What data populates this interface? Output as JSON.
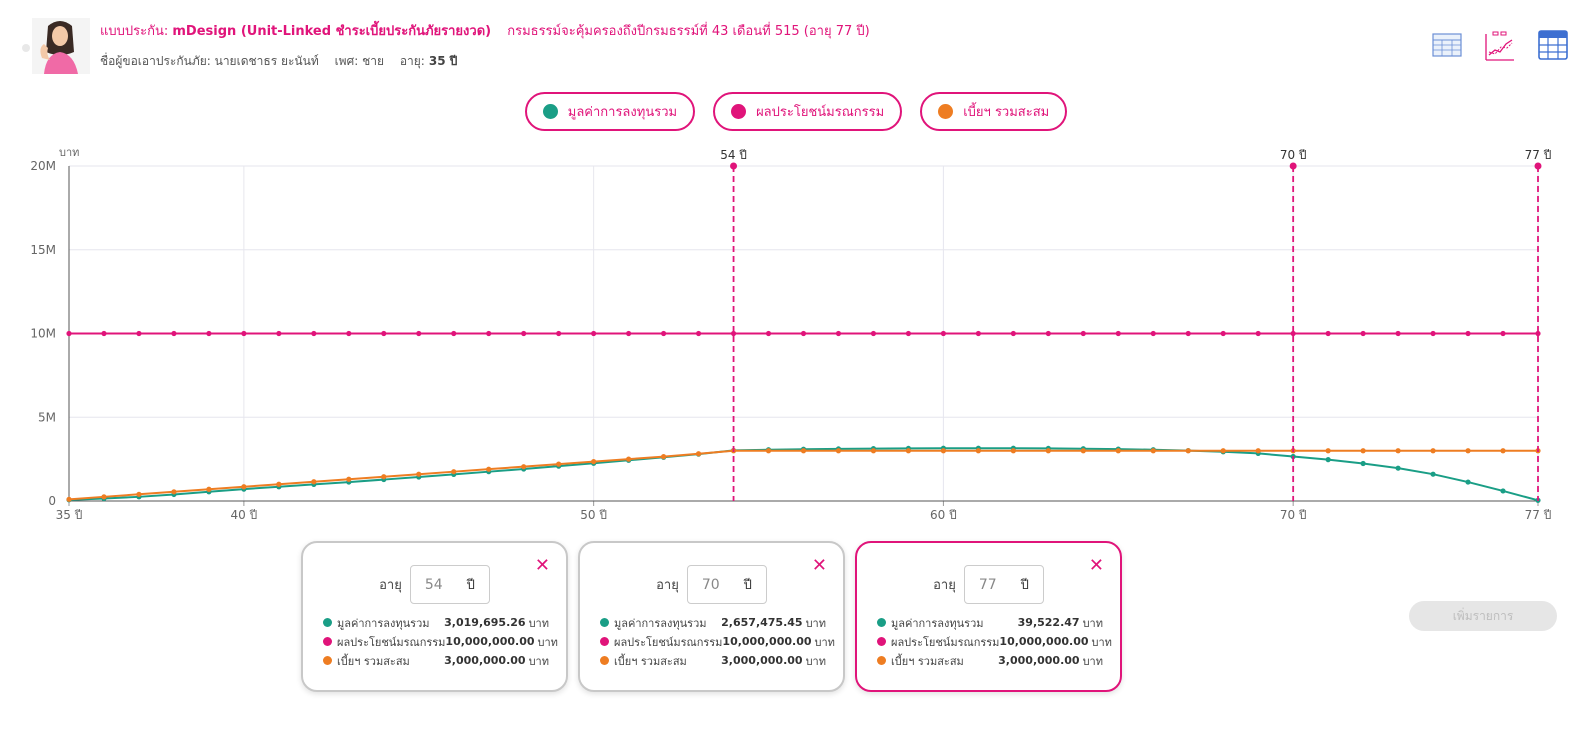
{
  "header": {
    "plan_label": "แบบประกัน:",
    "plan_name": "mDesign (Unit-Linked ชำระเบี้ยประกันภัยรายงวด)",
    "coverage_text": "กรมธรรม์จะคุ้มครองถึงปีกรมธรรม์ที่ 43 เดือนที่ 515 (อายุ 77 ปี)",
    "insured_name": "ชื่อผู้ขอเอาประกันภัย: นายเดชาธร ยะนันท์",
    "gender": "เพศ: ชาย",
    "age_label": "อายุ:",
    "age_value": "35 ปี"
  },
  "view_icons": [
    "table-view-icon",
    "chart-view-icon",
    "calculator-view-icon"
  ],
  "legend": [
    {
      "label": "มูลค่าการลงทุนรวม",
      "color": "#1a9e86"
    },
    {
      "label": "ผลประโยชน์มรณกรรม",
      "color": "#e0147a"
    },
    {
      "label": "เบี้ยฯ รวมสะสม",
      "color": "#ee7d22"
    }
  ],
  "chart_data": {
    "type": "line",
    "ylabel": "บาท",
    "xlim": [
      35,
      77
    ],
    "ylim": [
      0,
      20000000
    ],
    "x_ticks": [
      {
        "v": 35,
        "label": "35 ปี"
      },
      {
        "v": 40,
        "label": "40 ปี"
      },
      {
        "v": 50,
        "label": "50 ปี"
      },
      {
        "v": 60,
        "label": "60 ปี"
      },
      {
        "v": 70,
        "label": "70 ปี"
      },
      {
        "v": 77,
        "label": "77 ปี"
      }
    ],
    "y_ticks": [
      {
        "v": 0,
        "label": "0"
      },
      {
        "v": 5000000,
        "label": "5M"
      },
      {
        "v": 10000000,
        "label": "10M"
      },
      {
        "v": 15000000,
        "label": "15M"
      },
      {
        "v": 20000000,
        "label": "20M"
      }
    ],
    "markers": [
      {
        "age": 54,
        "label": "54 ปี"
      },
      {
        "age": 70,
        "label": "70 ปี"
      },
      {
        "age": 77,
        "label": "77 ปี"
      }
    ],
    "x": [
      35,
      36,
      37,
      38,
      39,
      40,
      41,
      42,
      43,
      44,
      45,
      46,
      47,
      48,
      49,
      50,
      51,
      52,
      53,
      54,
      55,
      56,
      57,
      58,
      59,
      60,
      61,
      62,
      63,
      64,
      65,
      66,
      67,
      68,
      69,
      70,
      71,
      72,
      73,
      74,
      75,
      76,
      77
    ],
    "series": [
      {
        "name": "มูลค่าการลงทุนรวม",
        "color": "#1a9e86",
        "values": [
          70000,
          150000,
          250000,
          390000,
          550000,
          710000,
          850000,
          990000,
          1130000,
          1280000,
          1430000,
          1590000,
          1750000,
          1910000,
          2080000,
          2250000,
          2430000,
          2610000,
          2800000,
          3019695,
          3060000,
          3090000,
          3110000,
          3130000,
          3140000,
          3150000,
          3150000,
          3150000,
          3140000,
          3120000,
          3100000,
          3060000,
          3010000,
          2940000,
          2840000,
          2657475,
          2470000,
          2240000,
          1960000,
          1600000,
          1130000,
          600000,
          39522
        ]
      },
      {
        "name": "ผลประโยชน์มรณกรรม",
        "color": "#e0147a",
        "values": [
          10000000,
          10000000,
          10000000,
          10000000,
          10000000,
          10000000,
          10000000,
          10000000,
          10000000,
          10000000,
          10000000,
          10000000,
          10000000,
          10000000,
          10000000,
          10000000,
          10000000,
          10000000,
          10000000,
          10000000,
          10000000,
          10000000,
          10000000,
          10000000,
          10000000,
          10000000,
          10000000,
          10000000,
          10000000,
          10000000,
          10000000,
          10000000,
          10000000,
          10000000,
          10000000,
          10000000,
          10000000,
          10000000,
          10000000,
          10000000,
          10000000,
          10000000,
          10000000
        ]
      },
      {
        "name": "เบี้ยฯ รวมสะสม",
        "color": "#ee7d22",
        "values": [
          100000,
          250000,
          400000,
          550000,
          700000,
          850000,
          1000000,
          1150000,
          1300000,
          1450000,
          1600000,
          1750000,
          1900000,
          2050000,
          2200000,
          2350000,
          2500000,
          2650000,
          2820000,
          3000000,
          3000000,
          3000000,
          3000000,
          3000000,
          3000000,
          3000000,
          3000000,
          3000000,
          3000000,
          3000000,
          3000000,
          3000000,
          3000000,
          3000000,
          3000000,
          3000000,
          3000000,
          3000000,
          3000000,
          3000000,
          3000000,
          3000000,
          3000000
        ]
      }
    ]
  },
  "cards": [
    {
      "age_label": "อายุ",
      "age": "54",
      "unit": "ปี",
      "active": false,
      "rows": [
        {
          "label": "มูลค่าการลงทุนรวม",
          "value": "3,019,695.26",
          "currency": "บาท",
          "color": "#1a9e86"
        },
        {
          "label": "ผลประโยชน์มรณกรรม",
          "value": "10,000,000.00",
          "currency": "บาท",
          "color": "#e0147a"
        },
        {
          "label": "เบี้ยฯ รวมสะสม",
          "value": "3,000,000.00",
          "currency": "บาท",
          "color": "#ee7d22"
        }
      ]
    },
    {
      "age_label": "อายุ",
      "age": "70",
      "unit": "ปี",
      "active": false,
      "rows": [
        {
          "label": "มูลค่าการลงทุนรวม",
          "value": "2,657,475.45",
          "currency": "บาท",
          "color": "#1a9e86"
        },
        {
          "label": "ผลประโยชน์มรณกรรม",
          "value": "10,000,000.00",
          "currency": "บาท",
          "color": "#e0147a"
        },
        {
          "label": "เบี้ยฯ รวมสะสม",
          "value": "3,000,000.00",
          "currency": "บาท",
          "color": "#ee7d22"
        }
      ]
    },
    {
      "age_label": "อายุ",
      "age": "77",
      "unit": "ปี",
      "active": true,
      "rows": [
        {
          "label": "มูลค่าการลงทุนรวม",
          "value": "39,522.47",
          "currency": "บาท",
          "color": "#1a9e86"
        },
        {
          "label": "ผลประโยชน์มรณกรรม",
          "value": "10,000,000.00",
          "currency": "บาท",
          "color": "#e0147a"
        },
        {
          "label": "เบี้ยฯ รวมสะสม",
          "value": "3,000,000.00",
          "currency": "บาท",
          "color": "#ee7d22"
        }
      ]
    }
  ],
  "add_button": "เพิ่มรายการ"
}
